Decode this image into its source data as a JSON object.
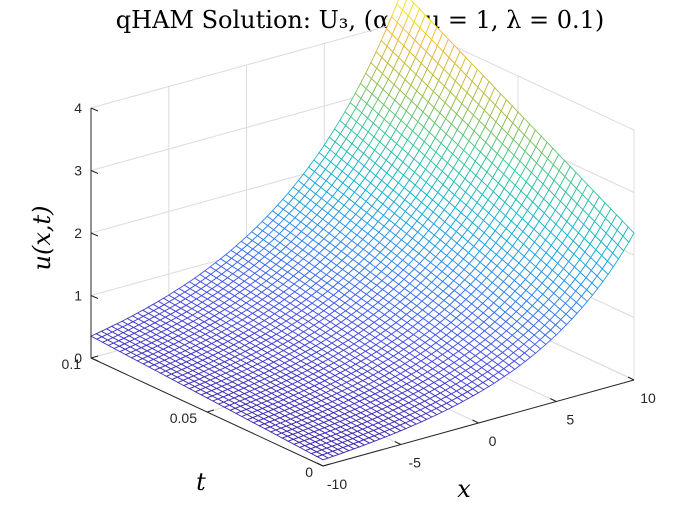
{
  "chart_data": {
    "type": "surface",
    "title": "qHAM Solution: U₃, (α = μ = 1,  λ = 0.1)",
    "xlabel": "x",
    "ylabel": "t",
    "zlabel": "u(x,t)",
    "xlim": [
      -10,
      10
    ],
    "ylim": [
      0,
      0.1
    ],
    "zlim": [
      0,
      4
    ],
    "xticks": [
      -10,
      -5,
      0,
      5,
      10
    ],
    "yticks": [
      0,
      0.05,
      0.1
    ],
    "zticks": [
      0,
      1,
      2,
      3,
      4
    ],
    "xtick_labels": [
      "-10",
      "-5",
      "0",
      "5",
      "10"
    ],
    "ytick_labels": [
      "0",
      "0.05",
      "0.1"
    ],
    "ztick_labels": [
      "0",
      "1",
      "2",
      "3",
      "4"
    ],
    "grid": true,
    "colormap": "parula",
    "mesh_resolution": [
      60,
      40
    ],
    "surface_corners": [
      {
        "x": -10,
        "t": 0,
        "u": 0.1
      },
      {
        "x": -10,
        "t": 0.1,
        "u": 0.35
      },
      {
        "x": 10,
        "t": 0,
        "u": 2.35
      },
      {
        "x": 10,
        "t": 0.1,
        "u": 4.5
      }
    ]
  }
}
